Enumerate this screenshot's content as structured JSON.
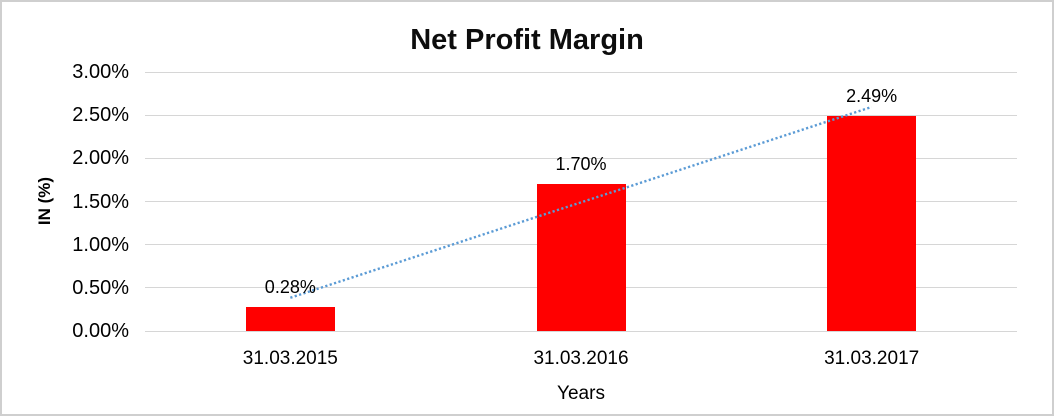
{
  "chart_data": {
    "type": "bar",
    "title": "Net Profit Margin",
    "xlabel": "Years",
    "ylabel": "IN (%)",
    "categories": [
      "31.03.2015",
      "31.03.2016",
      "31.03.2017"
    ],
    "values": [
      0.28,
      1.7,
      2.49
    ],
    "value_labels": [
      "0.28%",
      "1.70%",
      "2.49%"
    ],
    "ylim": [
      0,
      3.0
    ],
    "ytick_step": 0.5,
    "ytick_labels": [
      "0.00%",
      "0.50%",
      "1.00%",
      "1.50%",
      "2.00%",
      "2.50%",
      "3.00%"
    ],
    "grid": true,
    "legend": "none",
    "bar_color": "#ff0000",
    "trendline": {
      "style": "dotted",
      "color": "#5b9bd5",
      "fit": "linear"
    }
  },
  "colors": {
    "background": "#ffffff",
    "border": "#cfcfcf",
    "gridline": "#d6d6d6",
    "text": "#000000"
  }
}
